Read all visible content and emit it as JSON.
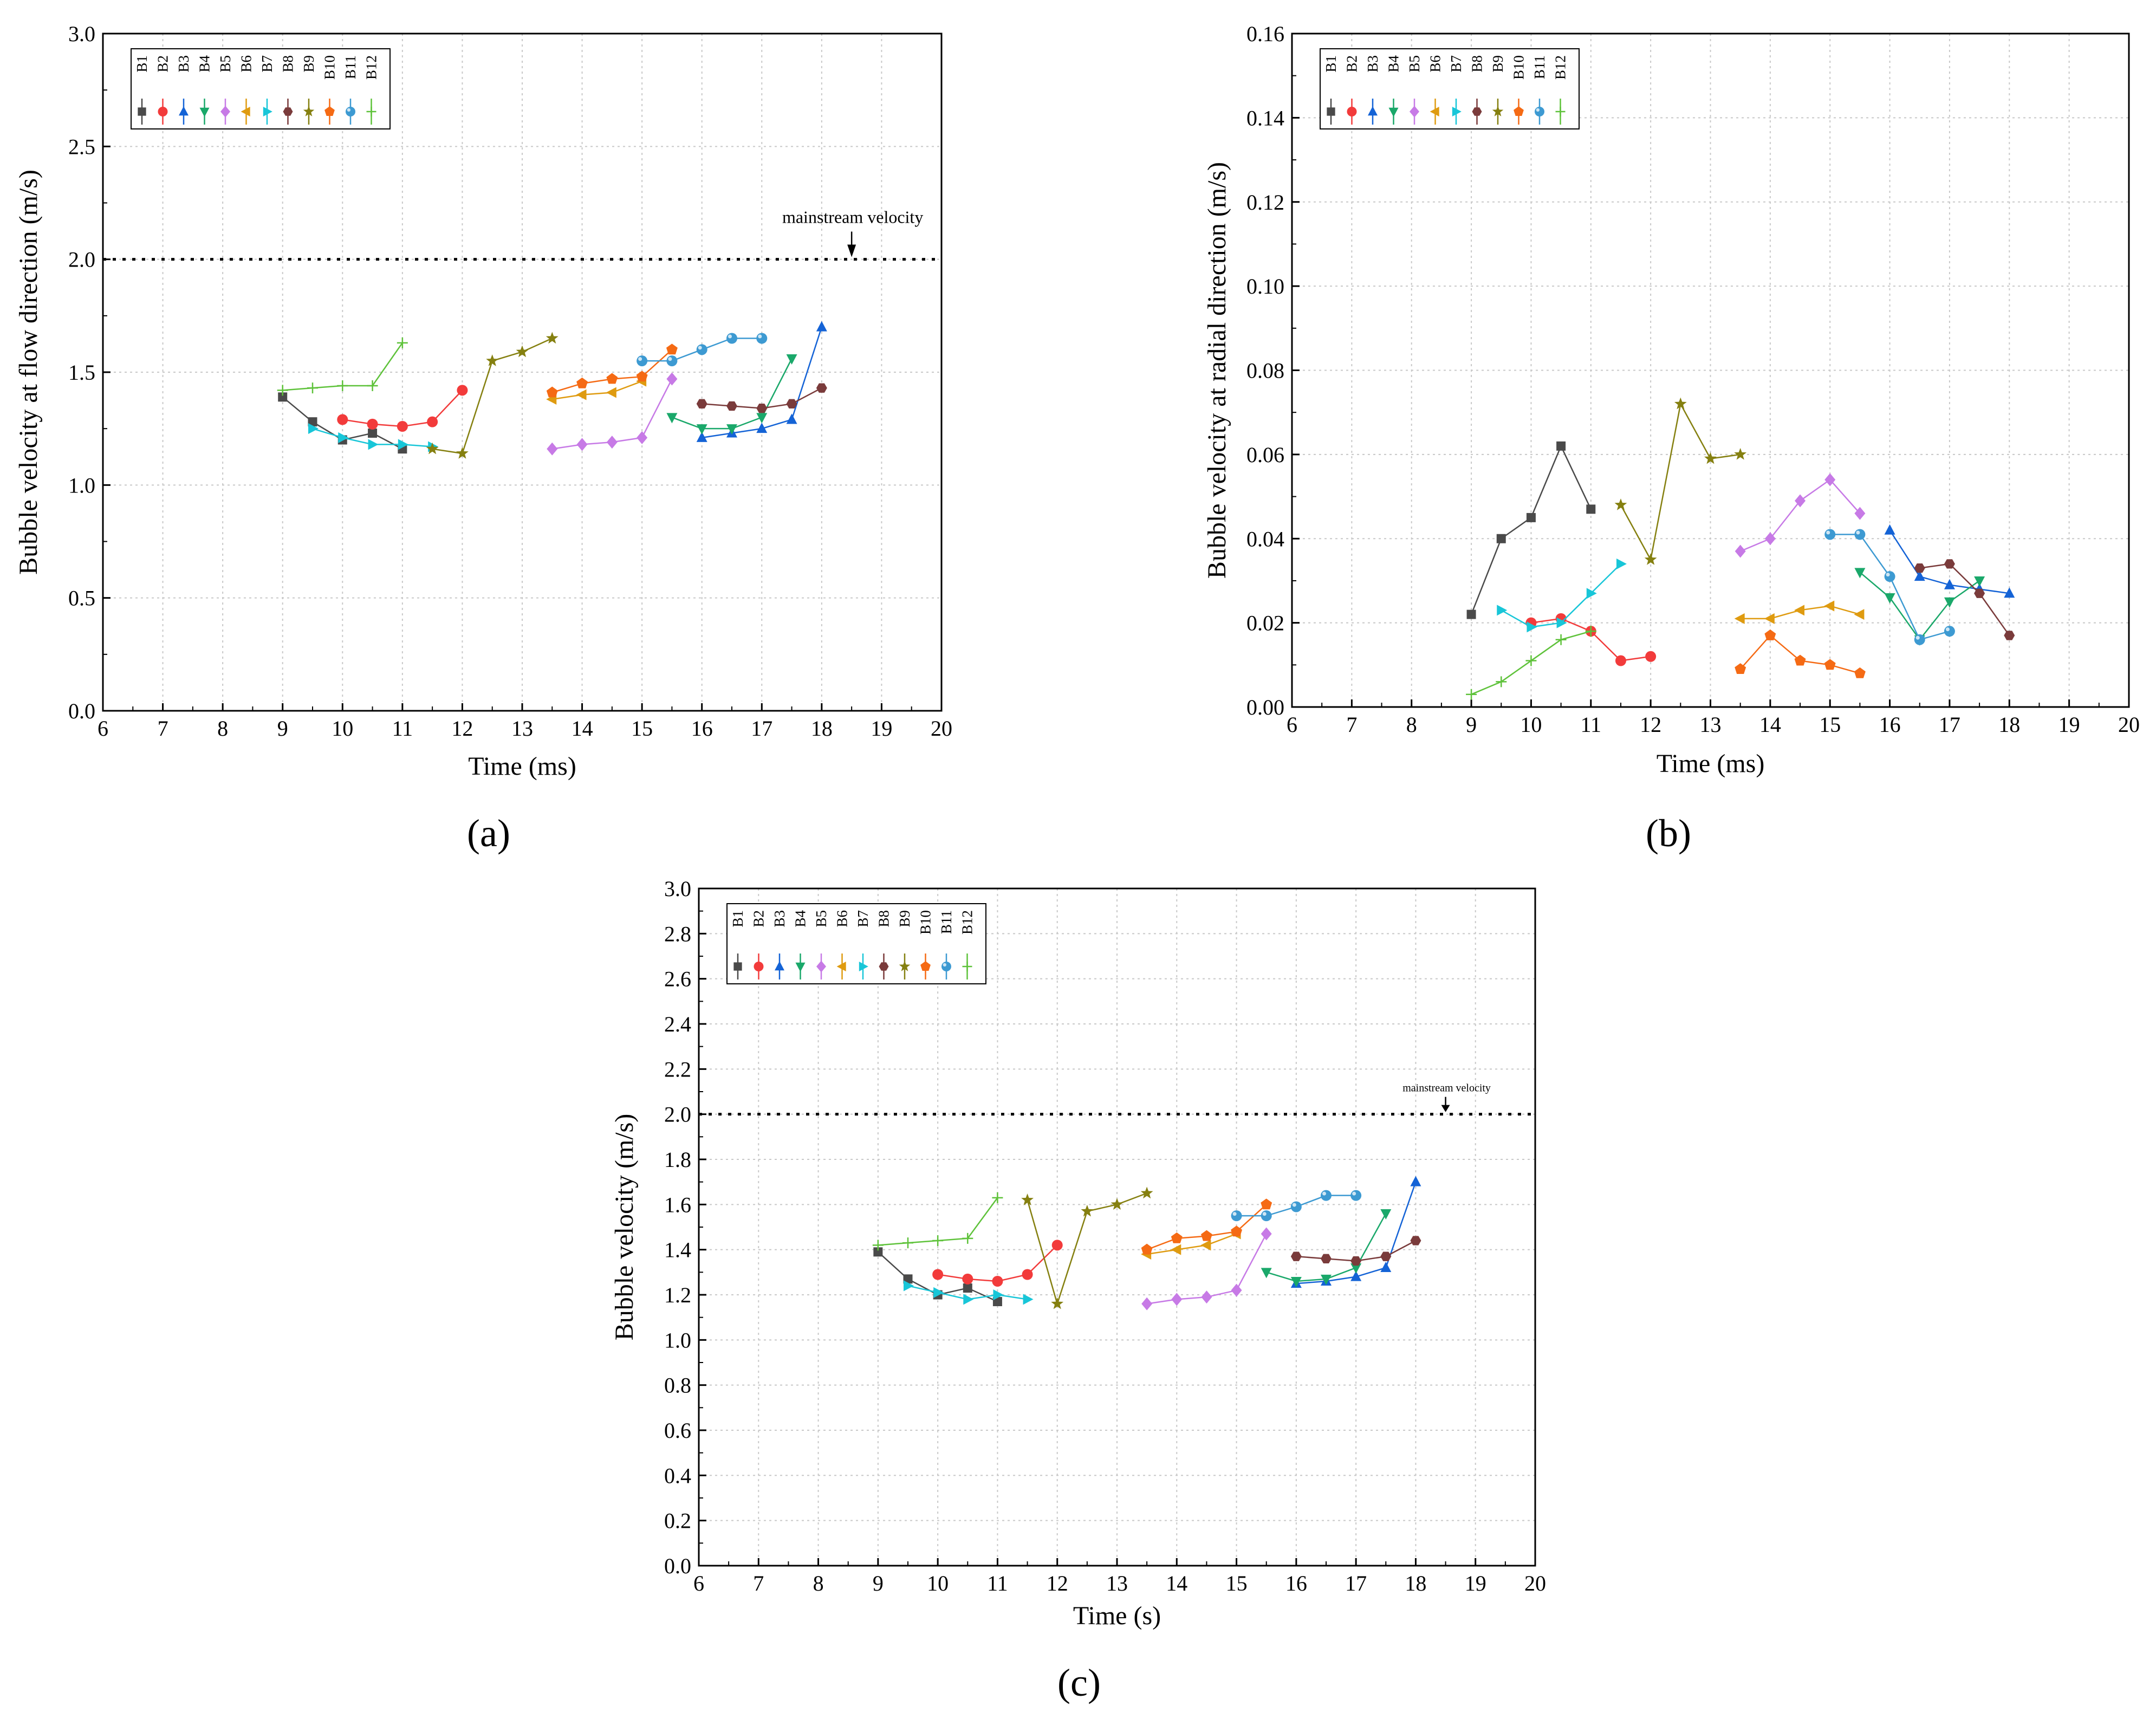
{
  "colors": {
    "B1": "#4a4a4a",
    "B2": "#f23b3b",
    "B3": "#1463d6",
    "B4": "#1aa86a",
    "B5": "#c77ae6",
    "B6": "#df9b10",
    "B7": "#18c6d8",
    "B8": "#7a3b3b",
    "B9": "#858010",
    "B10": "#f56a14",
    "B11": "#3d9ad2",
    "B12": "#5ec23a"
  },
  "markers": {
    "B1": "square",
    "B2": "circle",
    "B3": "triangle-up",
    "B4": "triangle-down",
    "B5": "diamond",
    "B6": "triangle-left",
    "B7": "triangle-right",
    "B8": "hexagon",
    "B9": "star",
    "B10": "pentagon",
    "B11": "sphere",
    "B12": "plus"
  },
  "chart_data": [
    {
      "type": "line",
      "panel_label": "(a)",
      "xlabel": "Time (ms)",
      "ylabel": "Bubble velocity at flow direction (m/s)",
      "xlim": [
        6,
        20
      ],
      "ylim": [
        0,
        3.0
      ],
      "xticks": [
        "6",
        "7",
        "8",
        "9",
        "10",
        "11",
        "12",
        "13",
        "14",
        "15",
        "16",
        "17",
        "18",
        "19",
        "20"
      ],
      "yticks": [
        "0.0",
        "0.5",
        "1.0",
        "1.5",
        "2.0",
        "2.5",
        "3.0"
      ],
      "reference_line": {
        "y": 2.0,
        "label": "mainstream velocity",
        "arrow_x": 18.5
      },
      "legend": {
        "position": "top-left",
        "entries": [
          "B1",
          "B2",
          "B3",
          "B4",
          "B5",
          "B6",
          "B7",
          "B8",
          "B9",
          "B10",
          "B11",
          "B12"
        ]
      },
      "series": [
        {
          "name": "B1",
          "x": [
            9,
            9.5,
            10,
            10.5,
            11
          ],
          "y": [
            1.39,
            1.28,
            1.2,
            1.23,
            1.16
          ]
        },
        {
          "name": "B2",
          "x": [
            10,
            10.5,
            11,
            11.5,
            12
          ],
          "y": [
            1.29,
            1.27,
            1.26,
            1.28,
            1.42
          ]
        },
        {
          "name": "B3",
          "x": [
            16,
            16.5,
            17,
            17.5,
            18
          ],
          "y": [
            1.21,
            1.23,
            1.25,
            1.29,
            1.7
          ]
        },
        {
          "name": "B4",
          "x": [
            15.5,
            16,
            16.5,
            17,
            17.5
          ],
          "y": [
            1.3,
            1.25,
            1.25,
            1.3,
            1.56
          ]
        },
        {
          "name": "B5",
          "x": [
            13.5,
            14,
            14.5,
            15,
            15.5
          ],
          "y": [
            1.16,
            1.18,
            1.19,
            1.21,
            1.47
          ]
        },
        {
          "name": "B6",
          "x": [
            13.5,
            14,
            14.5,
            15
          ],
          "y": [
            1.38,
            1.4,
            1.41,
            1.46
          ]
        },
        {
          "name": "B7",
          "x": [
            9.5,
            10,
            10.5,
            11,
            11.5
          ],
          "y": [
            1.25,
            1.21,
            1.18,
            1.18,
            1.17
          ]
        },
        {
          "name": "B8",
          "x": [
            16,
            16.5,
            17,
            17.5,
            18
          ],
          "y": [
            1.36,
            1.35,
            1.34,
            1.36,
            1.43
          ]
        },
        {
          "name": "B9",
          "x": [
            11.5,
            12,
            12.5,
            13,
            13.5
          ],
          "y": [
            1.16,
            1.14,
            1.55,
            1.59,
            1.65
          ]
        },
        {
          "name": "B10",
          "x": [
            13.5,
            14,
            14.5,
            15,
            15.5
          ],
          "y": [
            1.41,
            1.45,
            1.47,
            1.48,
            1.6
          ]
        },
        {
          "name": "B11",
          "x": [
            15,
            15.5,
            16,
            16.5,
            17
          ],
          "y": [
            1.55,
            1.55,
            1.6,
            1.65,
            1.65
          ]
        },
        {
          "name": "B12",
          "x": [
            9,
            9.5,
            10,
            10.5,
            11
          ],
          "y": [
            1.42,
            1.43,
            1.44,
            1.44,
            1.63
          ]
        }
      ]
    },
    {
      "type": "line",
      "panel_label": "(b)",
      "xlabel": "Time (ms)",
      "ylabel": "Bubble velocity at radial direction (m/s)",
      "xlim": [
        6,
        20
      ],
      "ylim": [
        0,
        0.16
      ],
      "xticks": [
        "6",
        "7",
        "8",
        "9",
        "10",
        "11",
        "12",
        "13",
        "14",
        "15",
        "16",
        "17",
        "18",
        "19",
        "20"
      ],
      "yticks": [
        "0.00",
        "0.02",
        "0.04",
        "0.06",
        "0.08",
        "0.10",
        "0.12",
        "0.14",
        "0.16"
      ],
      "legend": {
        "position": "top-left",
        "entries": [
          "B1",
          "B2",
          "B3",
          "B4",
          "B5",
          "B6",
          "B7",
          "B8",
          "B9",
          "B10",
          "B11",
          "B12"
        ]
      },
      "series": [
        {
          "name": "B1",
          "x": [
            9,
            9.5,
            10,
            10.5,
            11
          ],
          "y": [
            0.022,
            0.04,
            0.045,
            0.062,
            0.047
          ]
        },
        {
          "name": "B2",
          "x": [
            10,
            10.5,
            11,
            11.5,
            12
          ],
          "y": [
            0.02,
            0.021,
            0.018,
            0.011,
            0.012
          ]
        },
        {
          "name": "B3",
          "x": [
            16,
            16.5,
            17,
            17.5,
            18
          ],
          "y": [
            0.042,
            0.031,
            0.029,
            0.028,
            0.027
          ]
        },
        {
          "name": "B4",
          "x": [
            15.5,
            16,
            16.5,
            17,
            17.5
          ],
          "y": [
            0.032,
            0.026,
            0.016,
            0.025,
            0.03
          ]
        },
        {
          "name": "B5",
          "x": [
            13.5,
            14,
            14.5,
            15,
            15.5
          ],
          "y": [
            0.037,
            0.04,
            0.049,
            0.054,
            0.046
          ]
        },
        {
          "name": "B6",
          "x": [
            13.5,
            14,
            14.5,
            15,
            15.5
          ],
          "y": [
            0.021,
            0.021,
            0.023,
            0.024,
            0.022
          ]
        },
        {
          "name": "B7",
          "x": [
            9.5,
            10,
            10.5,
            11,
            11.5
          ],
          "y": [
            0.023,
            0.019,
            0.02,
            0.027,
            0.034
          ]
        },
        {
          "name": "B8",
          "x": [
            16.5,
            17,
            17.5,
            18
          ],
          "y": [
            0.033,
            0.034,
            0.027,
            0.017
          ]
        },
        {
          "name": "B9",
          "x": [
            11.5,
            12,
            12.5,
            13,
            13.5
          ],
          "y": [
            0.048,
            0.035,
            0.072,
            0.059,
            0.06
          ]
        },
        {
          "name": "B10",
          "x": [
            13.5,
            14,
            14.5,
            15,
            15.5
          ],
          "y": [
            0.009,
            0.017,
            0.011,
            0.01,
            0.008
          ]
        },
        {
          "name": "B11",
          "x": [
            15,
            15.5,
            16,
            16.5,
            17
          ],
          "y": [
            0.041,
            0.041,
            0.031,
            0.016,
            0.018
          ]
        },
        {
          "name": "B12",
          "x": [
            9,
            9.5,
            10,
            10.5,
            11
          ],
          "y": [
            0.003,
            0.006,
            0.011,
            0.016,
            0.018
          ]
        }
      ]
    },
    {
      "type": "line",
      "panel_label": "(c)",
      "xlabel": "Time (s)",
      "ylabel": "Bubble velocity (m/s)",
      "xlim": [
        6,
        20
      ],
      "ylim": [
        0,
        3.0
      ],
      "xticks": [
        "6",
        "7",
        "8",
        "9",
        "10",
        "11",
        "12",
        "13",
        "14",
        "15",
        "16",
        "17",
        "18",
        "19",
        "20"
      ],
      "yticks": [
        "0.0",
        "0.2",
        "0.4",
        "0.6",
        "0.8",
        "1.0",
        "1.2",
        "1.4",
        "1.6",
        "1.8",
        "2.0",
        "2.2",
        "2.4",
        "2.6",
        "2.8",
        "3.0"
      ],
      "reference_line": {
        "y": 2.0,
        "label": "mainstream velocity",
        "arrow_x": 18.5
      },
      "legend": {
        "position": "top-left",
        "entries": [
          "B1",
          "B2",
          "B3",
          "B4",
          "B5",
          "B6",
          "B7",
          "B8",
          "B9",
          "B10",
          "B11",
          "B12"
        ]
      },
      "series": [
        {
          "name": "B1",
          "x": [
            9,
            9.5,
            10,
            10.5,
            11
          ],
          "y": [
            1.39,
            1.27,
            1.2,
            1.23,
            1.17
          ]
        },
        {
          "name": "B2",
          "x": [
            10,
            10.5,
            11,
            11.5,
            12
          ],
          "y": [
            1.29,
            1.27,
            1.26,
            1.29,
            1.42
          ]
        },
        {
          "name": "B3",
          "x": [
            16,
            16.5,
            17,
            17.5,
            18
          ],
          "y": [
            1.25,
            1.26,
            1.28,
            1.32,
            1.7
          ]
        },
        {
          "name": "B4",
          "x": [
            15.5,
            16,
            16.5,
            17,
            17.5
          ],
          "y": [
            1.3,
            1.26,
            1.27,
            1.32,
            1.56
          ]
        },
        {
          "name": "B5",
          "x": [
            13.5,
            14,
            14.5,
            15,
            15.5
          ],
          "y": [
            1.16,
            1.18,
            1.19,
            1.22,
            1.47
          ]
        },
        {
          "name": "B6",
          "x": [
            13.5,
            14,
            14.5,
            15
          ],
          "y": [
            1.38,
            1.4,
            1.42,
            1.47
          ]
        },
        {
          "name": "B7",
          "x": [
            9.5,
            10,
            10.5,
            11,
            11.5
          ],
          "y": [
            1.24,
            1.21,
            1.18,
            1.2,
            1.18
          ]
        },
        {
          "name": "B8",
          "x": [
            16,
            16.5,
            17,
            17.5,
            18
          ],
          "y": [
            1.37,
            1.36,
            1.35,
            1.37,
            1.44
          ]
        },
        {
          "name": "B9",
          "x": [
            11.5,
            12,
            12.5,
            13,
            13.5
          ],
          "y": [
            1.62,
            1.16,
            1.57,
            1.6,
            1.65
          ]
        },
        {
          "name": "B10",
          "x": [
            13.5,
            14,
            14.5,
            15,
            15.5
          ],
          "y": [
            1.4,
            1.45,
            1.46,
            1.48,
            1.6
          ]
        },
        {
          "name": "B11",
          "x": [
            15,
            15.5,
            16,
            16.5,
            17
          ],
          "y": [
            1.55,
            1.55,
            1.59,
            1.64,
            1.64
          ]
        },
        {
          "name": "B12",
          "x": [
            9,
            9.5,
            10,
            10.5,
            11
          ],
          "y": [
            1.42,
            1.43,
            1.44,
            1.45,
            1.63
          ]
        }
      ]
    }
  ]
}
